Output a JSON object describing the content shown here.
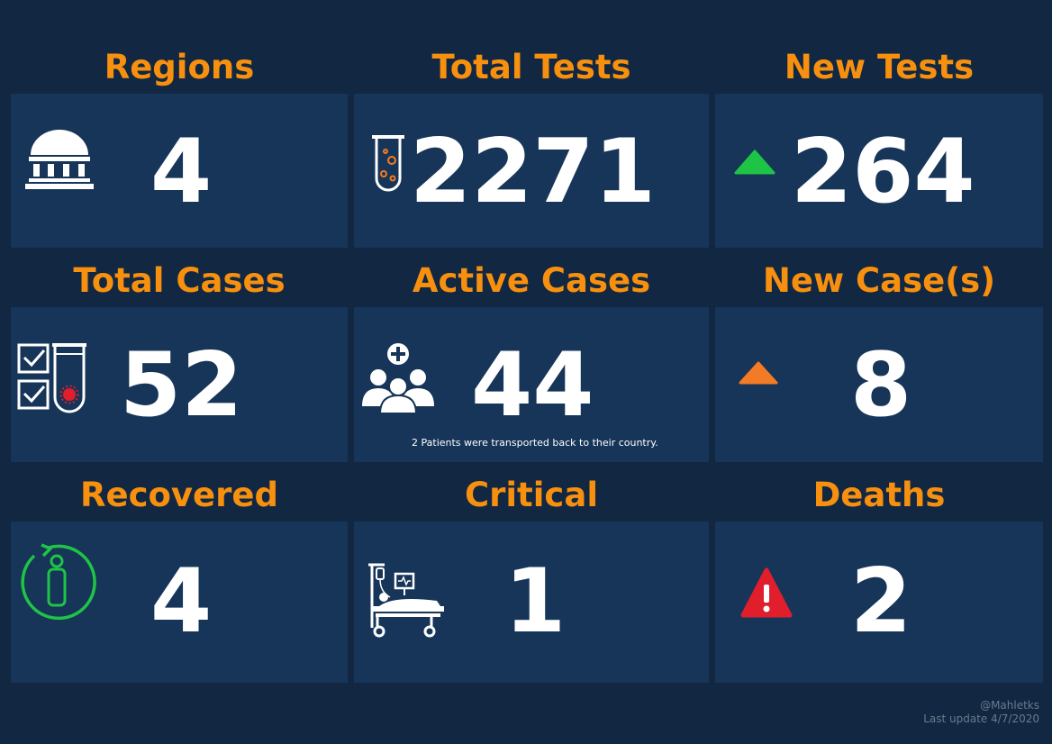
{
  "colors": {
    "background": "#112742",
    "card": "#163558",
    "title": "#f7900f",
    "value": "#ffffff",
    "up_green": "#1ec445",
    "up_orange": "#f47b26",
    "warning_red": "#e01e2c"
  },
  "tiles": {
    "regions": {
      "title": "Regions",
      "value": "4",
      "icon": "government-building-icon"
    },
    "total_tests": {
      "title": "Total Tests",
      "value": "2271",
      "icon": "test-tube-icon"
    },
    "new_tests": {
      "title": "New Tests",
      "value": "264",
      "icon": "triangle-up-icon"
    },
    "total_cases": {
      "title": "Total Cases",
      "value": "52",
      "icon": "checklist-test-tube-icon"
    },
    "active_cases": {
      "title": "Active Cases",
      "value": "44",
      "icon": "patients-group-icon",
      "note": "2 Patients were transported back to their country."
    },
    "new_cases": {
      "title": "New Case(s)",
      "value": "8",
      "icon": "triangle-up-icon"
    },
    "recovered": {
      "title": "Recovered",
      "value": "4",
      "icon": "recovered-person-icon"
    },
    "critical": {
      "title": "Critical",
      "value": "1",
      "icon": "hospital-bed-icon"
    },
    "deaths": {
      "title": "Deaths",
      "value": "2",
      "icon": "warning-icon"
    }
  },
  "footer": {
    "author": "@Mahletks",
    "updated": "Last update 4/7/2020"
  }
}
